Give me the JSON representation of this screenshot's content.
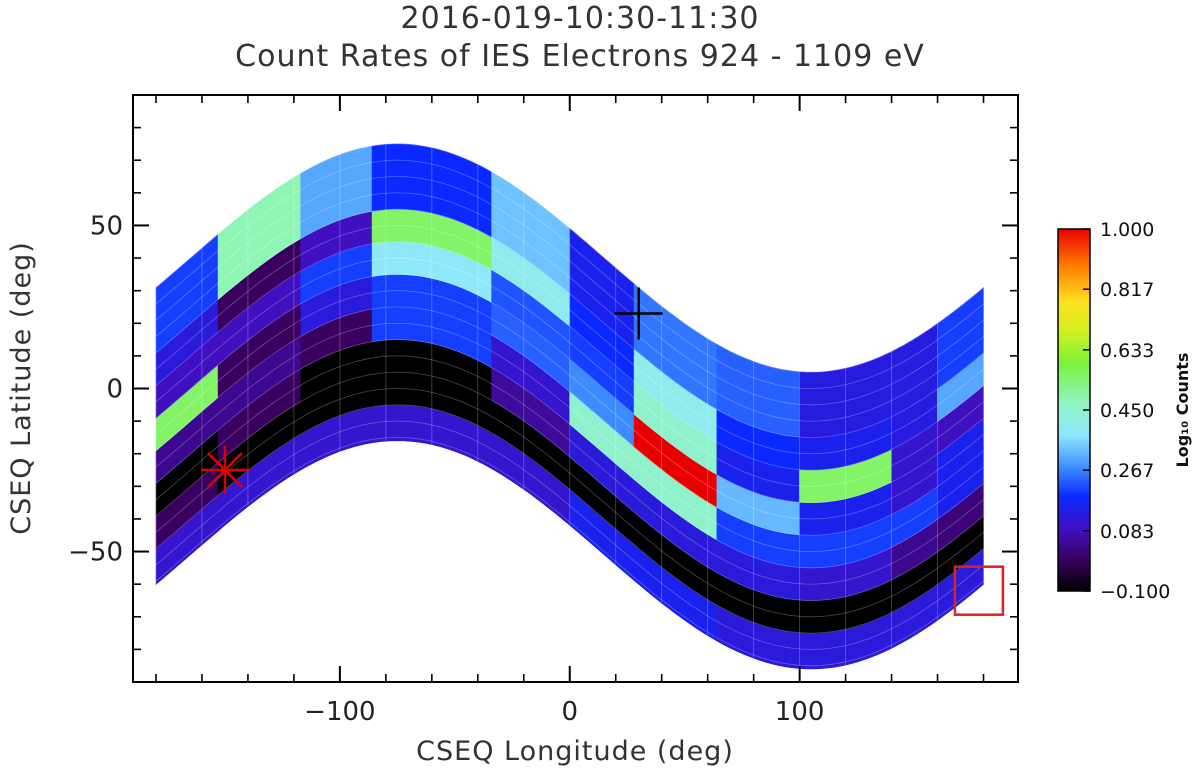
{
  "chart_data": {
    "type": "heatmap",
    "title": "2016-019-10:30-11:30",
    "subtitle": "Count Rates of IES Electrons 924 - 1109 eV",
    "xlabel": "CSEQ Longitude (deg)",
    "ylabel": "CSEQ Latitude (deg)",
    "xlim": [
      -190,
      195
    ],
    "ylim": [
      -90,
      90
    ],
    "x_ticks": [
      -100,
      0,
      100
    ],
    "x_tick_labels": [
      "−100",
      "0",
      "100"
    ],
    "y_ticks": [
      50,
      0,
      -50
    ],
    "y_tick_labels": [
      "50",
      "0",
      "−50"
    ],
    "curve": {
      "amplitude_deg": 35,
      "center_lon_deg": -75,
      "description": "sinusoidal field-of-view band"
    },
    "longitude_edges": [
      -180,
      -153,
      -117,
      -86,
      -34,
      0,
      28,
      64,
      100,
      140,
      160,
      180
    ],
    "offset_edges_deg": [
      -51,
      -40,
      -30,
      -20,
      -10,
      0,
      10,
      20,
      40
    ],
    "values_log10": [
      [
        0.1,
        0.1,
        0.1,
        0.1,
        0.1,
        0.15,
        0.15,
        0.12,
        0.12,
        0.12,
        0.12
      ],
      [
        0.0,
        -0.1,
        -0.1,
        -0.1,
        -0.1,
        -0.1,
        -0.1,
        -0.1,
        -0.1,
        -0.1,
        -0.1
      ],
      [
        -0.1,
        0.0,
        -0.1,
        -0.1,
        0.05,
        0.12,
        0.12,
        0.12,
        0.1,
        0.04,
        0.02
      ],
      [
        0.04,
        0.04,
        0.0,
        0.2,
        0.1,
        0.45,
        0.45,
        0.2,
        0.2,
        0.2,
        0.15
      ],
      [
        0.55,
        0.0,
        0.12,
        0.2,
        0.23,
        0.27,
        1.0,
        0.32,
        0.15,
        0.1,
        0.15
      ],
      [
        0.08,
        0.08,
        0.2,
        0.38,
        0.22,
        0.2,
        0.45,
        0.15,
        0.55,
        0.1,
        0.08
      ],
      [
        0.12,
        0.0,
        0.08,
        0.55,
        0.4,
        0.18,
        0.4,
        0.18,
        0.15,
        0.13,
        0.3
      ],
      [
        0.2,
        0.48,
        0.3,
        0.18,
        0.33,
        0.15,
        0.25,
        0.23,
        0.13,
        0.13,
        0.2
      ]
    ],
    "colorbar": {
      "label": "Log₁₀ Counts",
      "min": -0.1,
      "max": 1.0,
      "tick_labels": [
        "1.000",
        "0.817",
        "0.633",
        "0.450",
        "0.267",
        "0.083",
        "−0.100"
      ],
      "tick_values": [
        1.0,
        0.817,
        0.633,
        0.45,
        0.267,
        0.083,
        -0.1
      ]
    },
    "markers": [
      {
        "type": "cross",
        "lon": 30,
        "lat": 23,
        "color": "#000000"
      },
      {
        "type": "asterisk",
        "lon": -150,
        "lat": -25,
        "color": "#dd0000"
      },
      {
        "type": "square",
        "lon": 178,
        "lat": -62,
        "color": "#dd2222"
      }
    ],
    "grid": true
  }
}
